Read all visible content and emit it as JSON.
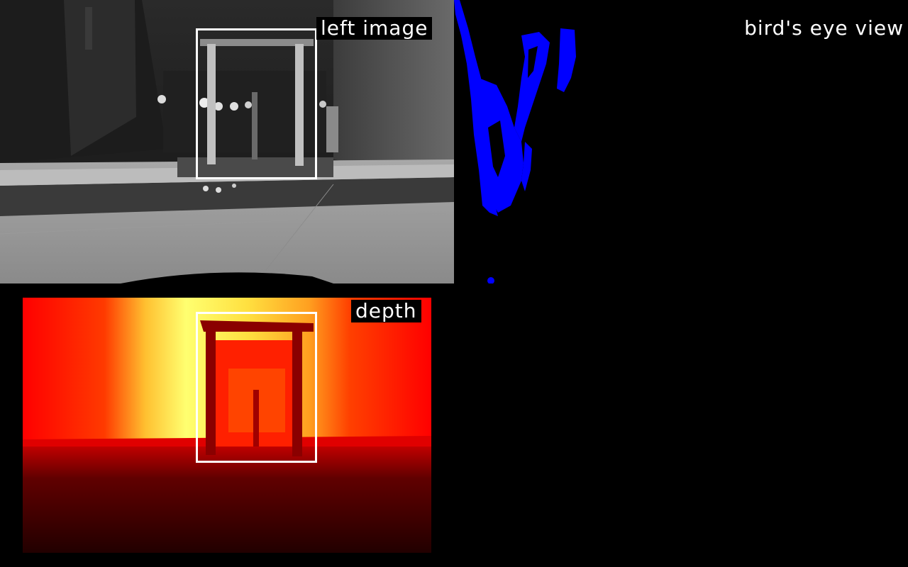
{
  "panels": {
    "left_image": {
      "label": "left image"
    },
    "birds_eye": {
      "label": "bird's eye view"
    },
    "depth": {
      "label": "depth"
    }
  },
  "colors": {
    "background": "#000000",
    "label_text": "#ffffff",
    "roi_box": "#ffffff",
    "point_cloud": "#0000ff",
    "depth_near": "#2a0000",
    "depth_mid": "#ff0000",
    "depth_far": "#ffff60"
  }
}
